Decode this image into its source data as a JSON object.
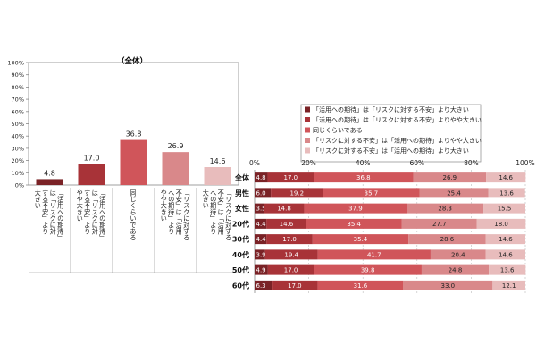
{
  "chart_data": [
    {
      "type": "bar",
      "title": "（全体）",
      "categories": [
        "「活用への期待」は「リスクに対する不安」より大きい",
        "「活用への期待」は「リスクに対する不安」よりやや大きい",
        "同じくらいである",
        "「リスクに対する不安」は「活用への期待」よりやや大きい",
        "「リスクに対する不安」は「活用への期待」より大きい"
      ],
      "values": [
        4.8,
        17.0,
        36.8,
        26.9,
        14.6
      ],
      "value_labels": [
        "4.8",
        "17.0",
        "36.8",
        "26.9",
        "14.6"
      ],
      "ylim": [
        0,
        100
      ],
      "yticks": [
        "0%",
        "10%",
        "20%",
        "30%",
        "40%",
        "50%",
        "60%",
        "70%",
        "80%",
        "90%",
        "100%"
      ],
      "colors": [
        "#7a2226",
        "#a83338",
        "#d0555a",
        "#d9888a",
        "#e8bcbc"
      ],
      "grid": false
    },
    {
      "type": "bar",
      "orientation": "horizontal",
      "stacked": true,
      "categories": [
        "全体",
        "男性",
        "女性",
        "20代",
        "30代",
        "40代",
        "50代",
        "60代"
      ],
      "series": [
        {
          "name": "「活用への期待」は「リスクに対する不安」より大きい",
          "color": "#7a2226",
          "values": [
            4.8,
            6.0,
            3.5,
            4.4,
            4.4,
            3.9,
            4.9,
            6.3
          ],
          "labels": [
            "4.8",
            "6.0",
            "3.5",
            "4.4",
            "4.4",
            "3.9",
            "4.9",
            "6.3"
          ]
        },
        {
          "name": "「活用への期待」は「リスクに対する不安」よりやや大きい",
          "color": "#a83338",
          "values": [
            17.0,
            19.2,
            14.8,
            14.6,
            17.0,
            19.4,
            17.0,
            17.0
          ],
          "labels": [
            "17.0",
            "19.2",
            "14.8",
            "14.6",
            "17.0",
            "19.4",
            "17.0",
            "17.0"
          ]
        },
        {
          "name": "同じくらいである",
          "color": "#d0555a",
          "values": [
            36.8,
            35.7,
            37.9,
            35.4,
            35.4,
            41.7,
            39.8,
            31.6
          ],
          "labels": [
            "36.8",
            "35.7",
            "37.9",
            "35.4",
            "35.4",
            "41.7",
            "39.8",
            "31.6"
          ]
        },
        {
          "name": "「リスクに対する不安」は「活用への期待」よりやや大きい",
          "color": "#d9888a",
          "values": [
            26.9,
            25.4,
            28.3,
            27.7,
            28.6,
            20.4,
            24.8,
            33.0
          ],
          "labels": [
            "26.9",
            "25.4",
            "28.3",
            "27.7",
            "28.6",
            "20.4",
            "24.8",
            "33.0"
          ]
        },
        {
          "name": "「リスクに対する不安」は「活用への期待」より大きい",
          "color": "#e8bcbc",
          "values": [
            14.6,
            13.6,
            15.5,
            18.0,
            14.6,
            14.6,
            13.6,
            12.1
          ],
          "labels": [
            "14.6",
            "13.6",
            "15.5",
            "18.0",
            "14.6",
            "14.6",
            "13.6",
            "12.1"
          ]
        }
      ],
      "xlim": [
        0,
        100
      ],
      "xticks": [
        "0%",
        "20%",
        "40%",
        "60%",
        "80%",
        "100%"
      ],
      "legend": "top-right",
      "grid": true
    }
  ]
}
